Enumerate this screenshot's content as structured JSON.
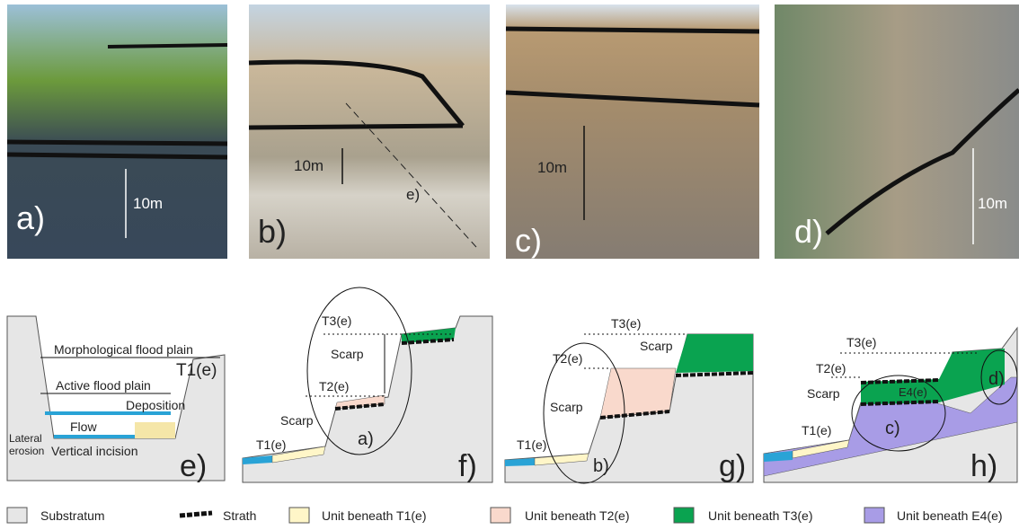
{
  "photos": [
    {
      "label": "a)",
      "scale": "10m"
    },
    {
      "label": "b)",
      "scale": "10m",
      "line": "e)"
    },
    {
      "label": "c)",
      "scale": "10m"
    },
    {
      "label": "d)",
      "scale": "10m"
    }
  ],
  "diagrams": [
    {
      "label": "e)",
      "morphological": "Morphological flood plain",
      "terrace": "T1(e)",
      "active": "Active flood plain",
      "deposition": "Deposition",
      "flow": "Flow",
      "lateral": [
        "Lateral",
        "erosion"
      ],
      "vertical": "Vertical incision"
    },
    {
      "label": "f)",
      "t3": "T3(e)",
      "scarp_upper": "Scarp",
      "t2": "T2(e)",
      "scarp_lower": "Scarp",
      "t1": "T1(e)",
      "photo": "a)"
    },
    {
      "label": "g)",
      "t3": "T3(e)",
      "t2": "T2(e)",
      "scarp_upper": "Scarp",
      "scarp_lower": "Scarp",
      "t1": "T1(e)",
      "photo": "b)"
    },
    {
      "label": "h)",
      "t3": "T3(e)",
      "t2": "T2(e)",
      "e4": "E4(e)",
      "scarp": "Scarp",
      "photo_d": "d)",
      "photo_c": "c)",
      "t1": "T1(e)"
    }
  ],
  "legend": [
    "Substratum",
    "Strath",
    "Unit beneath T1(e)",
    "Unit beneath T2(e)",
    "Unit beneath T3(e)",
    "Unit beneath E4(e)"
  ]
}
